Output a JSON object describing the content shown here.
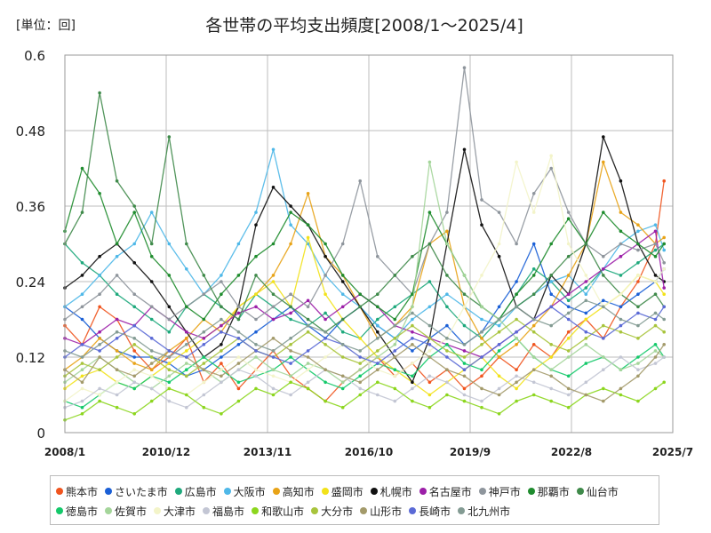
{
  "chart_data": {
    "type": "line",
    "title": "各世帯の平均支出頻度[2008/1～2025/4]",
    "unit_label": "[単位：回]",
    "xlabel": "",
    "ylabel": "",
    "ylim": [
      0,
      0.6
    ],
    "y_ticks": [
      "0",
      "0.12",
      "0.24",
      "0.36",
      "0.48",
      "0.6"
    ],
    "xlim": [
      "2008/1",
      "2025/7"
    ],
    "x_ticks": [
      "2008/1",
      "2010/12",
      "2013/11",
      "2016/10",
      "2019/9",
      "2022/8",
      "2025/7"
    ],
    "grid": true,
    "legend_position": "bottom",
    "x": [
      "2008/1",
      "2008/7",
      "2009/1",
      "2009/7",
      "2010/1",
      "2010/7",
      "2011/1",
      "2011/7",
      "2012/1",
      "2012/7",
      "2013/1",
      "2013/7",
      "2014/1",
      "2014/7",
      "2015/1",
      "2015/7",
      "2016/1",
      "2016/7",
      "2017/1",
      "2017/7",
      "2018/1",
      "2018/7",
      "2019/1",
      "2019/7",
      "2020/1",
      "2020/7",
      "2021/1",
      "2021/7",
      "2022/1",
      "2022/7",
      "2023/1",
      "2023/7",
      "2024/1",
      "2024/7",
      "2025/1",
      "2025/4"
    ],
    "series": [
      {
        "name": "熊本市",
        "color": "#f0541e",
        "values": [
          0.17,
          0.14,
          0.2,
          0.18,
          0.13,
          0.1,
          0.12,
          0.15,
          0.08,
          0.11,
          0.07,
          0.1,
          0.13,
          0.09,
          0.07,
          0.05,
          0.08,
          0.1,
          0.12,
          0.09,
          0.11,
          0.08,
          0.1,
          0.07,
          0.09,
          0.12,
          0.1,
          0.14,
          0.12,
          0.16,
          0.18,
          0.15,
          0.2,
          0.24,
          0.3,
          0.4
        ]
      },
      {
        "name": "さいたま市",
        "color": "#1a5fd6",
        "values": [
          0.2,
          0.18,
          0.15,
          0.13,
          0.12,
          0.12,
          0.11,
          0.09,
          0.1,
          0.12,
          0.14,
          0.16,
          0.18,
          0.2,
          0.17,
          0.15,
          0.18,
          0.2,
          0.17,
          0.15,
          0.13,
          0.15,
          0.17,
          0.14,
          0.16,
          0.2,
          0.24,
          0.3,
          0.22,
          0.2,
          0.19,
          0.21,
          0.2,
          0.22,
          0.24,
          0.26
        ]
      },
      {
        "name": "広島市",
        "color": "#1ea97c",
        "values": [
          0.3,
          0.27,
          0.25,
          0.22,
          0.2,
          0.18,
          0.16,
          0.2,
          0.22,
          0.2,
          0.18,
          0.22,
          0.2,
          0.18,
          0.17,
          0.19,
          0.16,
          0.15,
          0.18,
          0.2,
          0.22,
          0.24,
          0.2,
          0.17,
          0.15,
          0.18,
          0.22,
          0.26,
          0.24,
          0.21,
          0.23,
          0.26,
          0.25,
          0.27,
          0.29,
          0.3
        ]
      },
      {
        "name": "大阪市",
        "color": "#4fb8e8",
        "values": [
          0.2,
          0.22,
          0.25,
          0.28,
          0.3,
          0.35,
          0.3,
          0.26,
          0.22,
          0.25,
          0.3,
          0.35,
          0.45,
          0.33,
          0.3,
          0.25,
          0.22,
          0.2,
          0.17,
          0.15,
          0.18,
          0.2,
          0.22,
          0.2,
          0.18,
          0.17,
          0.2,
          0.22,
          0.24,
          0.25,
          0.22,
          0.26,
          0.3,
          0.32,
          0.33,
          0.29
        ]
      },
      {
        "name": "高知市",
        "color": "#e8a317",
        "values": [
          0.1,
          0.12,
          0.15,
          0.13,
          0.11,
          0.1,
          0.13,
          0.15,
          0.18,
          0.16,
          0.2,
          0.22,
          0.25,
          0.3,
          0.38,
          0.28,
          0.25,
          0.2,
          0.15,
          0.17,
          0.2,
          0.3,
          0.32,
          0.2,
          0.15,
          0.12,
          0.14,
          0.17,
          0.2,
          0.25,
          0.3,
          0.43,
          0.35,
          0.33,
          0.3,
          0.31
        ]
      },
      {
        "name": "盛岡市",
        "color": "#f2e21a",
        "values": [
          0.07,
          0.09,
          0.1,
          0.08,
          0.07,
          0.09,
          0.11,
          0.13,
          0.15,
          0.17,
          0.2,
          0.22,
          0.24,
          0.2,
          0.31,
          0.22,
          0.18,
          0.15,
          0.12,
          0.1,
          0.08,
          0.06,
          0.08,
          0.1,
          0.12,
          0.09,
          0.07,
          0.1,
          0.12,
          0.15,
          0.18,
          0.2,
          0.22,
          0.25,
          0.24,
          0.22
        ]
      },
      {
        "name": "札幌市",
        "color": "#111111",
        "values": [
          0.23,
          0.25,
          0.28,
          0.3,
          0.27,
          0.24,
          0.2,
          0.16,
          0.12,
          0.14,
          0.2,
          0.33,
          0.39,
          0.36,
          0.33,
          0.28,
          0.24,
          0.2,
          0.16,
          0.12,
          0.08,
          0.15,
          0.3,
          0.45,
          0.33,
          0.28,
          0.2,
          0.18,
          0.25,
          0.22,
          0.3,
          0.47,
          0.4,
          0.3,
          0.25,
          0.24
        ]
      },
      {
        "name": "名古屋市",
        "color": "#9c1fa8",
        "values": [
          0.15,
          0.14,
          0.16,
          0.18,
          0.17,
          0.2,
          0.18,
          0.16,
          0.15,
          0.17,
          0.19,
          0.2,
          0.18,
          0.19,
          0.21,
          0.18,
          0.2,
          0.22,
          0.2,
          0.17,
          0.16,
          0.15,
          0.14,
          0.13,
          0.12,
          0.14,
          0.16,
          0.18,
          0.2,
          0.22,
          0.24,
          0.26,
          0.28,
          0.3,
          0.32,
          0.23
        ]
      },
      {
        "name": "神戸市",
        "color": "#8e959c",
        "values": [
          0.18,
          0.2,
          0.22,
          0.25,
          0.22,
          0.2,
          0.18,
          0.2,
          0.22,
          0.24,
          0.2,
          0.18,
          0.2,
          0.22,
          0.2,
          0.25,
          0.3,
          0.4,
          0.28,
          0.25,
          0.22,
          0.3,
          0.35,
          0.58,
          0.37,
          0.35,
          0.3,
          0.38,
          0.42,
          0.35,
          0.3,
          0.28,
          0.3,
          0.29,
          0.3,
          0.27
        ]
      },
      {
        "name": "那覇市",
        "color": "#1f8c2e",
        "values": [
          0.32,
          0.42,
          0.38,
          0.3,
          0.35,
          0.28,
          0.25,
          0.2,
          0.18,
          0.22,
          0.25,
          0.28,
          0.3,
          0.35,
          0.33,
          0.3,
          0.25,
          0.22,
          0.2,
          0.18,
          0.22,
          0.35,
          0.3,
          0.25,
          0.2,
          0.18,
          0.22,
          0.25,
          0.3,
          0.34,
          0.3,
          0.35,
          0.32,
          0.3,
          0.28,
          0.3
        ]
      },
      {
        "name": "仙台市",
        "color": "#3f8a4a",
        "values": [
          0.3,
          0.35,
          0.54,
          0.4,
          0.36,
          0.3,
          0.47,
          0.3,
          0.25,
          0.2,
          0.18,
          0.25,
          0.22,
          0.2,
          0.18,
          0.16,
          0.18,
          0.2,
          0.22,
          0.25,
          0.28,
          0.3,
          0.25,
          0.22,
          0.2,
          0.18,
          0.2,
          0.22,
          0.25,
          0.28,
          0.3,
          0.25,
          0.22,
          0.2,
          0.22,
          0.2
        ]
      },
      {
        "name": "徳島市",
        "color": "#14c96a",
        "values": [
          0.05,
          0.04,
          0.06,
          0.08,
          0.07,
          0.09,
          0.08,
          0.1,
          0.12,
          0.1,
          0.08,
          0.09,
          0.1,
          0.12,
          0.1,
          0.08,
          0.07,
          0.09,
          0.11,
          0.1,
          0.09,
          0.12,
          0.14,
          0.11,
          0.1,
          0.13,
          0.15,
          0.12,
          0.1,
          0.09,
          0.11,
          0.12,
          0.1,
          0.12,
          0.14,
          0.12
        ]
      },
      {
        "name": "佐賀市",
        "color": "#a4d59a",
        "values": [
          0.08,
          0.1,
          0.12,
          0.1,
          0.08,
          0.07,
          0.09,
          0.11,
          0.1,
          0.08,
          0.1,
          0.12,
          0.1,
          0.09,
          0.11,
          0.1,
          0.08,
          0.1,
          0.12,
          0.14,
          0.2,
          0.43,
          0.3,
          0.25,
          0.2,
          0.18,
          0.15,
          0.12,
          0.1,
          0.12,
          0.14,
          0.12,
          0.1,
          0.11,
          0.13,
          0.12
        ]
      },
      {
        "name": "大津市",
        "color": "#f3f4c9",
        "values": [
          0.05,
          0.07,
          0.06,
          0.08,
          0.1,
          0.09,
          0.07,
          0.06,
          0.08,
          0.1,
          0.12,
          0.1,
          0.09,
          0.08,
          0.1,
          0.12,
          0.14,
          0.12,
          0.1,
          0.09,
          0.11,
          0.13,
          0.15,
          0.2,
          0.25,
          0.3,
          0.43,
          0.35,
          0.44,
          0.3,
          0.25,
          0.2,
          0.22,
          0.25,
          0.24,
          0.26
        ]
      },
      {
        "name": "福島市",
        "color": "#c3c6d4",
        "values": [
          0.04,
          0.05,
          0.07,
          0.06,
          0.08,
          0.07,
          0.05,
          0.04,
          0.06,
          0.08,
          0.1,
          0.09,
          0.07,
          0.06,
          0.08,
          0.1,
          0.09,
          0.07,
          0.06,
          0.05,
          0.07,
          0.09,
          0.08,
          0.06,
          0.05,
          0.07,
          0.09,
          0.08,
          0.07,
          0.06,
          0.08,
          0.1,
          0.12,
          0.1,
          0.11,
          0.12
        ]
      },
      {
        "name": "和歌山市",
        "color": "#8cd61e",
        "values": [
          0.02,
          0.03,
          0.05,
          0.04,
          0.03,
          0.05,
          0.07,
          0.06,
          0.04,
          0.03,
          0.05,
          0.07,
          0.06,
          0.08,
          0.07,
          0.05,
          0.04,
          0.06,
          0.08,
          0.07,
          0.05,
          0.04,
          0.06,
          0.05,
          0.04,
          0.03,
          0.05,
          0.06,
          0.05,
          0.04,
          0.06,
          0.07,
          0.06,
          0.05,
          0.07,
          0.08
        ]
      },
      {
        "name": "大分市",
        "color": "#a8c43c",
        "values": [
          0.09,
          0.11,
          0.1,
          0.12,
          0.14,
          0.12,
          0.1,
          0.09,
          0.11,
          0.13,
          0.15,
          0.13,
          0.12,
          0.14,
          0.16,
          0.14,
          0.12,
          0.11,
          0.13,
          0.15,
          0.17,
          0.15,
          0.13,
          0.12,
          0.14,
          0.16,
          0.18,
          0.16,
          0.14,
          0.13,
          0.15,
          0.17,
          0.16,
          0.15,
          0.17,
          0.16
        ]
      },
      {
        "name": "山形市",
        "color": "#a39a6a",
        "values": [
          0.1,
          0.08,
          0.12,
          0.1,
          0.09,
          0.11,
          0.13,
          0.12,
          0.1,
          0.09,
          0.11,
          0.13,
          0.15,
          0.13,
          0.12,
          0.1,
          0.09,
          0.08,
          0.1,
          0.12,
          0.14,
          0.12,
          0.1,
          0.09,
          0.07,
          0.06,
          0.08,
          0.1,
          0.09,
          0.07,
          0.06,
          0.05,
          0.07,
          0.09,
          0.12,
          0.14
        ]
      },
      {
        "name": "長崎市",
        "color": "#5b6ad6",
        "values": [
          0.12,
          0.14,
          0.13,
          0.15,
          0.17,
          0.15,
          0.13,
          0.12,
          0.14,
          0.16,
          0.15,
          0.13,
          0.12,
          0.11,
          0.13,
          0.15,
          0.14,
          0.12,
          0.11,
          0.13,
          0.15,
          0.14,
          0.12,
          0.1,
          0.12,
          0.14,
          0.16,
          0.18,
          0.2,
          0.18,
          0.16,
          0.15,
          0.17,
          0.19,
          0.18,
          0.2
        ]
      },
      {
        "name": "北九州市",
        "color": "#839b93",
        "values": [
          0.13,
          0.12,
          0.14,
          0.16,
          0.15,
          0.13,
          0.12,
          0.14,
          0.16,
          0.18,
          0.16,
          0.14,
          0.13,
          0.15,
          0.17,
          0.16,
          0.14,
          0.13,
          0.15,
          0.17,
          0.19,
          0.17,
          0.15,
          0.14,
          0.16,
          0.18,
          0.2,
          0.18,
          0.17,
          0.19,
          0.21,
          0.2,
          0.18,
          0.17,
          0.19,
          0.18
        ]
      }
    ]
  }
}
